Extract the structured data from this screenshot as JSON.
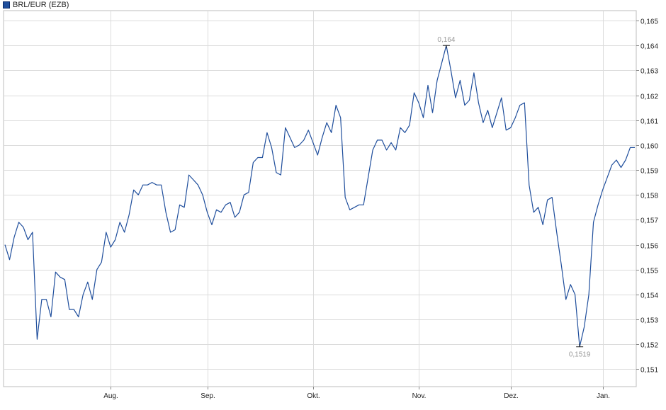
{
  "chart_data": {
    "type": "line",
    "legend": "BRL/EUR (EZB)",
    "colors": {
      "line": "#1f4e9c",
      "grid": "#dcdcdc",
      "swatch": "#1f4e9c"
    },
    "x_labels": [
      "Aug.",
      "Sep.",
      "Okt.",
      "Nov.",
      "Dez.",
      "Jan."
    ],
    "y_ticks": [
      "0,151",
      "0,152",
      "0,153",
      "0,154",
      "0,155",
      "0,156",
      "0,157",
      "0,158",
      "0,159",
      "0,160",
      "0,161",
      "0,162",
      "0,163",
      "0,164",
      "0,165"
    ],
    "ylim": [
      0.1503,
      0.1654
    ],
    "grid": true,
    "annotations": {
      "max_label": "0,164",
      "min_label": "0,1519"
    },
    "series": [
      {
        "values": [
          0.156,
          0.1554,
          0.1563,
          0.1569,
          0.1567,
          0.1562,
          0.1565,
          0.1522,
          0.1538,
          0.1538,
          0.1531,
          0.1549,
          0.1547,
          0.1546,
          0.1534,
          0.1534,
          0.1531,
          0.154,
          0.1545,
          0.1538,
          0.155,
          0.1553,
          0.1565,
          0.1559,
          0.1562,
          0.1569,
          0.1565,
          0.1572,
          0.1582,
          0.158,
          0.1584,
          0.1584,
          0.1585,
          0.1584,
          0.1584,
          0.1573,
          0.1565,
          0.1566,
          0.1576,
          0.1575,
          0.1588,
          0.1586,
          0.1584,
          0.158,
          0.1573,
          0.1568,
          0.1574,
          0.1573,
          0.1576,
          0.1577,
          0.1571,
          0.1573,
          0.158,
          0.1581,
          0.1593,
          0.1595,
          0.1595,
          0.1605,
          0.1599,
          0.1589,
          0.1588,
          0.1607,
          0.1603,
          0.1599,
          0.16,
          0.1602,
          0.1606,
          0.1601,
          0.1596,
          0.1603,
          0.1609,
          0.1605,
          0.1616,
          0.1611,
          0.1579,
          0.1574,
          0.1575,
          0.1576,
          0.1576,
          0.1587,
          0.1598,
          0.1602,
          0.1602,
          0.1598,
          0.1601,
          0.1598,
          0.1607,
          0.1605,
          0.1608,
          0.1621,
          0.1617,
          0.1611,
          0.1624,
          0.1613,
          0.1626,
          0.1633,
          0.164,
          0.163,
          0.1619,
          0.1626,
          0.1616,
          0.1618,
          0.1629,
          0.1617,
          0.1609,
          0.1614,
          0.1607,
          0.1613,
          0.1619,
          0.1606,
          0.1607,
          0.1611,
          0.1616,
          0.1617,
          0.1584,
          0.1573,
          0.1575,
          0.1568,
          0.1578,
          0.1579,
          0.1565,
          0.1552,
          0.1538,
          0.1544,
          0.154,
          0.1519,
          0.1527,
          0.154,
          0.1569,
          0.1576,
          0.1582,
          0.1587,
          0.1592,
          0.1594,
          0.1591,
          0.1594,
          0.1599,
          0.1599
        ]
      }
    ]
  }
}
